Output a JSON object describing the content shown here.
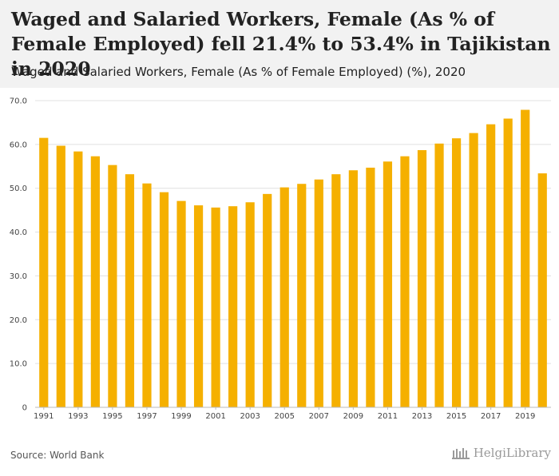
{
  "title": "Waged and Salaried Workers, Female (As % of Female Employed) fell 21.4% to 53.4% in Tajikistan in 2020",
  "subtitle": "Waged and Salaried Workers, Female (As % of Female Employed) (%), 2020",
  "source": "Source: World Bank",
  "logo": "HelgiLibrary",
  "colors": {
    "bar": "#f5b000",
    "header_bg": "#f2f2f2",
    "grid": "#e0e0e0"
  },
  "chart_data": {
    "type": "bar",
    "categories": [
      "1991",
      "1992",
      "1993",
      "1994",
      "1995",
      "1996",
      "1997",
      "1998",
      "1999",
      "2000",
      "2001",
      "2002",
      "2003",
      "2004",
      "2005",
      "2006",
      "2007",
      "2008",
      "2009",
      "2010",
      "2011",
      "2012",
      "2013",
      "2014",
      "2015",
      "2016",
      "2017",
      "2018",
      "2019",
      "2020"
    ],
    "values": [
      61.5,
      59.7,
      58.4,
      57.3,
      55.3,
      53.2,
      51.1,
      49.1,
      47.1,
      46.1,
      45.6,
      45.9,
      46.8,
      48.7,
      50.2,
      51.0,
      52.0,
      53.2,
      54.1,
      54.7,
      56.1,
      57.3,
      58.7,
      60.2,
      61.4,
      62.6,
      64.6,
      65.9,
      67.9,
      53.4
    ],
    "x_tick_labels": [
      "1991",
      "1993",
      "1995",
      "1997",
      "1999",
      "2001",
      "2003",
      "2005",
      "2007",
      "2009",
      "2011",
      "2013",
      "2015",
      "2017",
      "2019"
    ],
    "y_tick_labels": [
      "0",
      "10.0",
      "20.0",
      "30.0",
      "40.0",
      "50.0",
      "60.0",
      "70.0"
    ],
    "ylim": [
      0,
      70
    ],
    "grid": true,
    "legend": "none"
  }
}
